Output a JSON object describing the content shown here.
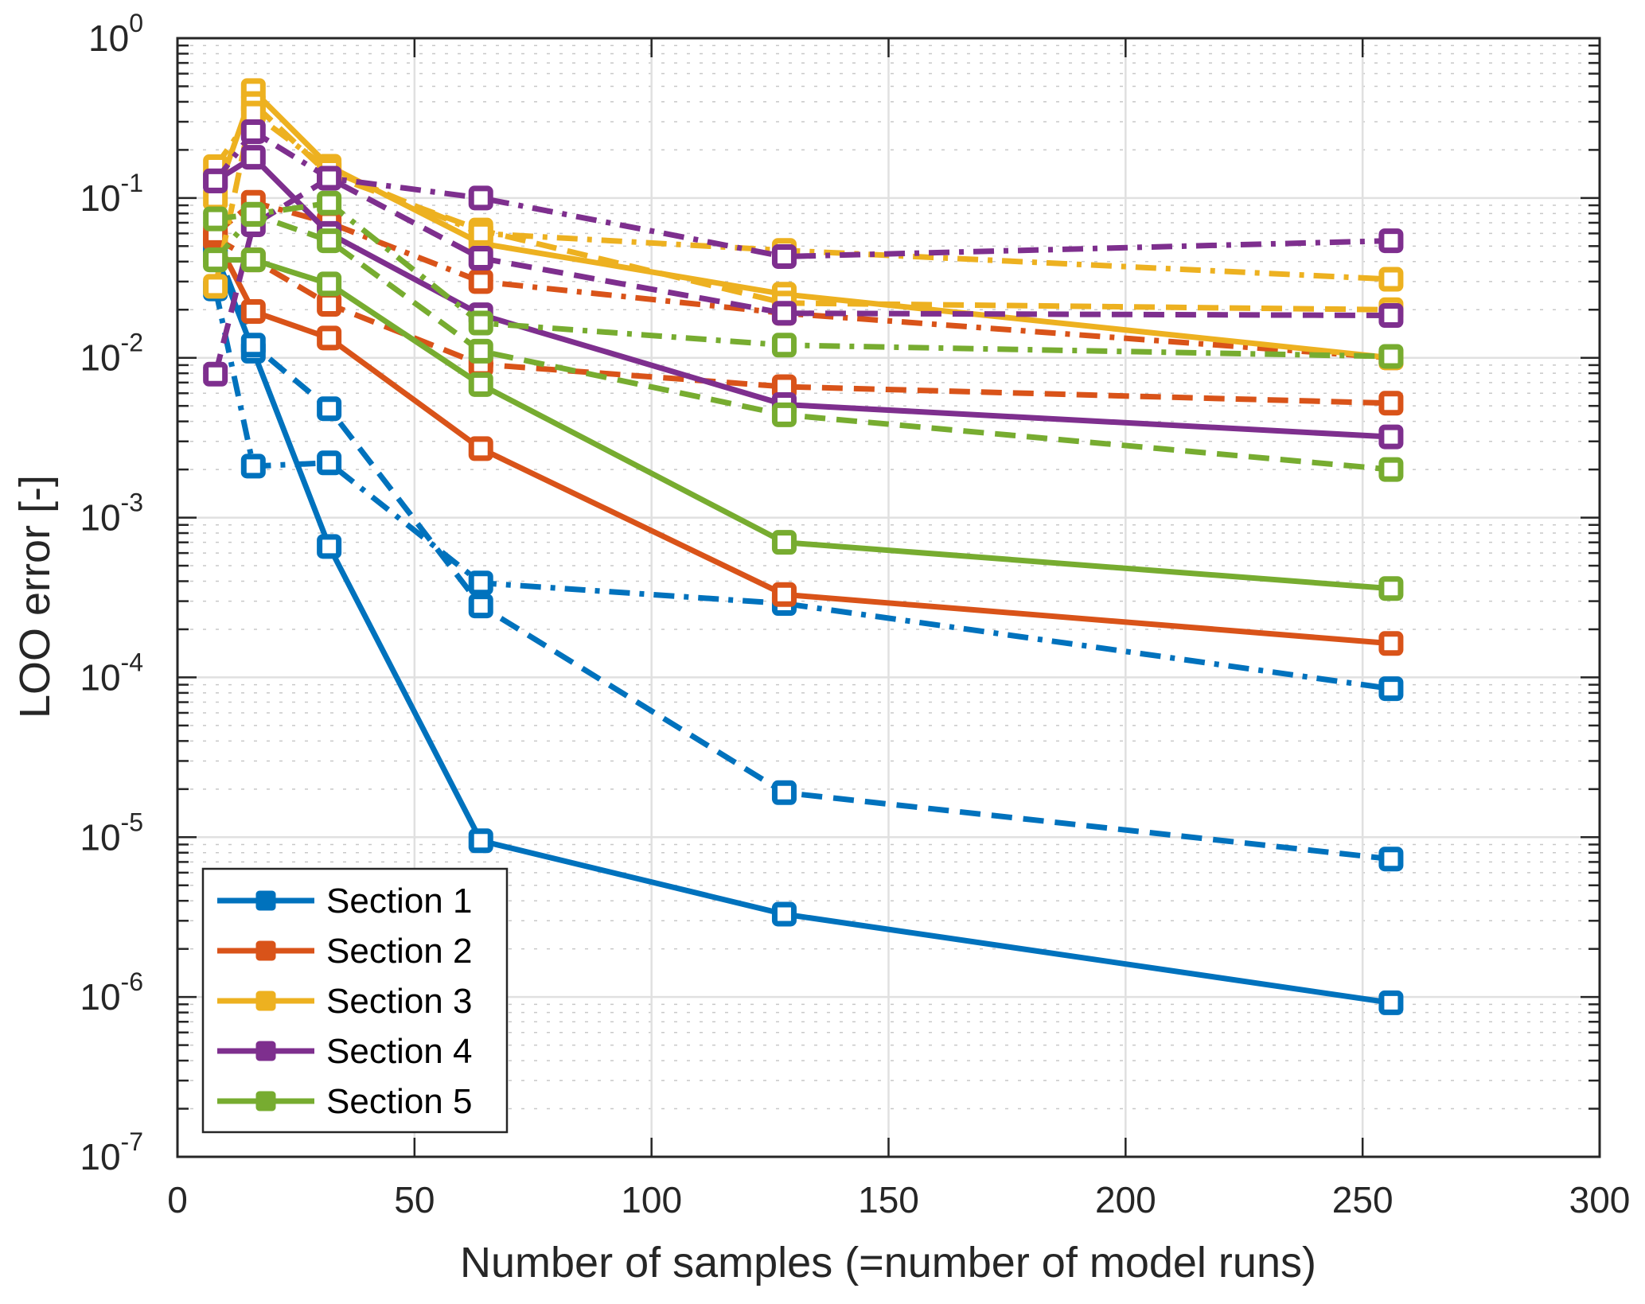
{
  "chart_data": {
    "type": "line",
    "title": "",
    "xlabel": "Number of samples (=number of model runs)",
    "ylabel": "LOO error [-]",
    "xscale": "linear",
    "yscale": "log",
    "xlim": [
      0,
      300
    ],
    "ylim": [
      1e-07,
      1
    ],
    "xticks": [
      0,
      50,
      100,
      150,
      200,
      250,
      300
    ],
    "xtick_labels": [
      "0",
      "50",
      "100",
      "150",
      "200",
      "250",
      "300"
    ],
    "yticks_exponents": [
      0,
      -1,
      -2,
      -3,
      -4,
      -5,
      -6,
      -7
    ],
    "ytick_base": "10",
    "grid": true,
    "minor_grid": true,
    "legend_position": "bottom-left",
    "legend": [
      {
        "label": "Section 1",
        "color": "#0072BD"
      },
      {
        "label": "Section 2",
        "color": "#D95319"
      },
      {
        "label": "Section 3",
        "color": "#EDB120"
      },
      {
        "label": "Section 4",
        "color": "#7E2F8E"
      },
      {
        "label": "Section 5",
        "color": "#77AC30"
      }
    ],
    "x": [
      8,
      16,
      32,
      64,
      128,
      256
    ],
    "series": [
      {
        "name": "Section 1",
        "style": "solid",
        "color": "#0072BD",
        "values": [
          0.045,
          0.011,
          0.00066,
          9.5e-06,
          3.3e-06,
          9.2e-07
        ]
      },
      {
        "name": "Section 1",
        "style": "dashed",
        "color": "#0072BD",
        "values": [
          0.05,
          0.012,
          0.0048,
          0.00028,
          1.9e-05,
          7.3e-06
        ]
      },
      {
        "name": "Section 1",
        "style": "dashdot",
        "color": "#0072BD",
        "values": [
          0.027,
          0.0021,
          0.0022,
          0.00039,
          0.00029,
          8.5e-05
        ]
      },
      {
        "name": "Section 2",
        "style": "solid",
        "color": "#D95319",
        "values": [
          0.056,
          0.0195,
          0.0133,
          0.0027,
          0.00033,
          0.000163
        ]
      },
      {
        "name": "Section 2",
        "style": "dashed",
        "color": "#D95319",
        "values": [
          0.056,
          0.041,
          0.0216,
          0.0091,
          0.0066,
          0.0052
        ]
      },
      {
        "name": "Section 2",
        "style": "dashdot",
        "color": "#D95319",
        "values": [
          0.06,
          0.094,
          0.07,
          0.03,
          0.019,
          0.01
        ]
      },
      {
        "name": "Section 3",
        "style": "solid",
        "color": "#EDB120",
        "values": [
          0.1,
          0.47,
          0.158,
          0.052,
          0.025,
          0.01
        ]
      },
      {
        "name": "Section 3",
        "style": "dashed",
        "color": "#EDB120",
        "values": [
          0.028,
          0.39,
          0.14,
          0.063,
          0.022,
          0.02
        ]
      },
      {
        "name": "Section 3",
        "style": "dashdot",
        "color": "#EDB120",
        "values": [
          0.157,
          0.34,
          0.15,
          0.06,
          0.047,
          0.031
        ]
      },
      {
        "name": "Section 4",
        "style": "solid",
        "color": "#7E2F8E",
        "values": [
          0.128,
          0.18,
          0.06,
          0.0186,
          0.0051,
          0.0032
        ]
      },
      {
        "name": "Section 4",
        "style": "dashed",
        "color": "#7E2F8E",
        "values": [
          0.0079,
          0.068,
          0.133,
          0.042,
          0.019,
          0.0184
        ]
      },
      {
        "name": "Section 4",
        "style": "dashdot",
        "color": "#7E2F8E",
        "values": [
          0.128,
          0.26,
          0.133,
          0.1,
          0.043,
          0.054
        ]
      },
      {
        "name": "Section 5",
        "style": "solid",
        "color": "#77AC30",
        "values": [
          0.041,
          0.041,
          0.029,
          0.0068,
          0.0007,
          0.00036
        ]
      },
      {
        "name": "Section 5",
        "style": "dashed",
        "color": "#77AC30",
        "values": [
          0.074,
          0.079,
          0.054,
          0.011,
          0.0044,
          0.002
        ]
      },
      {
        "name": "Section 5",
        "style": "dashdot",
        "color": "#77AC30",
        "values": [
          0.041,
          0.079,
          0.093,
          0.0165,
          0.012,
          0.0102
        ]
      }
    ]
  }
}
